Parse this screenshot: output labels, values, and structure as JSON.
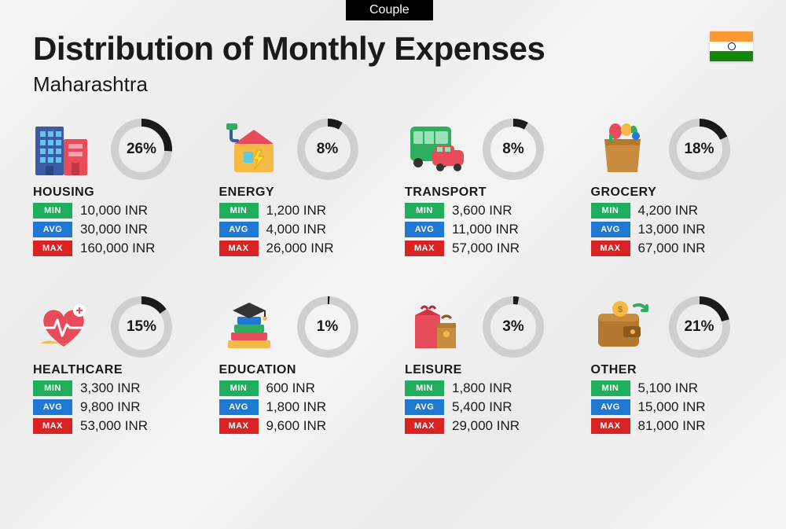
{
  "tab_label": "Couple",
  "title": "Distribution of Monthly Expenses",
  "subtitle": "Maharashtra",
  "flag_colors": {
    "top": "#FF9933",
    "middle": "#ffffff",
    "bottom": "#138808",
    "chakra": "#000080"
  },
  "donut": {
    "radius": 34,
    "stroke_width": 10,
    "track_color": "#cfcfcf",
    "progress_color": "#1a1a1a"
  },
  "badge_colors": {
    "min": "#1fae5b",
    "avg": "#1f78d1",
    "max": "#d92323"
  },
  "badge_labels": {
    "min": "MIN",
    "avg": "AVG",
    "max": "MAX"
  },
  "currency": "INR",
  "categories": [
    {
      "name": "HOUSING",
      "percent": 26,
      "min": "10,000",
      "avg": "30,000",
      "max": "160,000",
      "icon": "building"
    },
    {
      "name": "ENERGY",
      "percent": 8,
      "min": "1,200",
      "avg": "4,000",
      "max": "26,000",
      "icon": "energy"
    },
    {
      "name": "TRANSPORT",
      "percent": 8,
      "min": "3,600",
      "avg": "11,000",
      "max": "57,000",
      "icon": "bus"
    },
    {
      "name": "GROCERY",
      "percent": 18,
      "min": "4,200",
      "avg": "13,000",
      "max": "67,000",
      "icon": "grocery"
    },
    {
      "name": "HEALTHCARE",
      "percent": 15,
      "min": "3,300",
      "avg": "9,800",
      "max": "53,000",
      "icon": "healthcare"
    },
    {
      "name": "EDUCATION",
      "percent": 1,
      "min": "600",
      "avg": "1,800",
      "max": "9,600",
      "icon": "education"
    },
    {
      "name": "LEISURE",
      "percent": 3,
      "min": "1,800",
      "avg": "5,400",
      "max": "29,000",
      "icon": "leisure"
    },
    {
      "name": "OTHER",
      "percent": 21,
      "min": "5,100",
      "avg": "15,000",
      "max": "81,000",
      "icon": "wallet"
    }
  ]
}
